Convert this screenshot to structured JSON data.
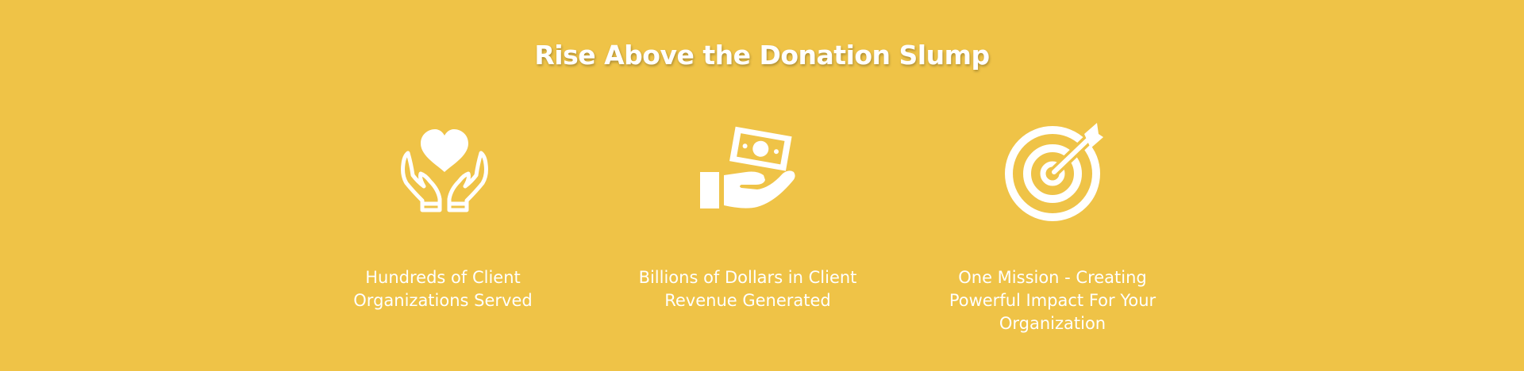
{
  "theme": {
    "background": "#EFC347",
    "foreground": "#FFFFFF"
  },
  "section": {
    "title": "Rise Above the Donation Slump"
  },
  "features": [
    {
      "icon": "hands-holding-heart-icon",
      "text": "Hundreds of Client Organizations Served"
    },
    {
      "icon": "hand-holding-money-icon",
      "text": "Billions of Dollars in Client Revenue Generated"
    },
    {
      "icon": "target-with-arrow-icon",
      "text": "One Mission - Creating Powerful Impact For Your Organization"
    }
  ]
}
